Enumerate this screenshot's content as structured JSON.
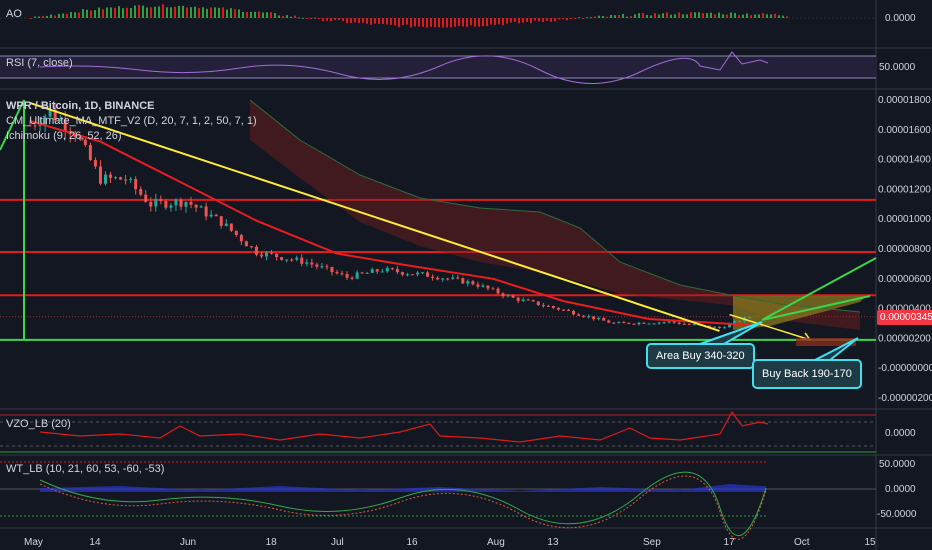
{
  "panes": {
    "ao": {
      "label": "AO",
      "value": "0.0000"
    },
    "rsi": {
      "label": "RSI (7, close)",
      "value": "50.0000"
    },
    "main": {
      "title": "WPR / Bitcoin, 1D, BINANCE",
      "ma_label": "CM_Ultimate_MA_MTF_V2 (D, 20, 7, 1, 2, 50, 7, 1)",
      "ichimoku_label": "Ichimoku (9, 26, 52, 26)",
      "price_ticks": [
        "0.00001800",
        "0.00001600",
        "0.00001400",
        "0.00001200",
        "0.00001000",
        "0.00000800",
        "0.00000600",
        "0.00000400",
        "0.00000200",
        "-0.00000000",
        "-0.00000200"
      ],
      "current_price": "0.00000345"
    },
    "vzo": {
      "label": "VZO_LB (20)",
      "value": "0.0000"
    },
    "wt": {
      "label": "WT_LB (10, 21, 60, 53, -60, -53)",
      "ticks": [
        "50.0000",
        "0.0000",
        "-50.0000"
      ]
    }
  },
  "annotations": {
    "area_buy": "Area Buy 340-320",
    "buy_back": "Buy Back 190-170"
  },
  "time_axis": [
    "May",
    "14",
    "Jun",
    "18",
    "Jul",
    "16",
    "Aug",
    "13",
    "Sep",
    "17",
    "Oct",
    "15"
  ],
  "colors": {
    "background": "#131722",
    "up_candle": "#26a69a",
    "down_candle": "#ef5350",
    "ma_line": "#e91e1e",
    "trendline": "#ffeb3b",
    "support": "#39d84a",
    "resistance": "#e31b1b",
    "callout_border": "#40e0ef",
    "cloud_bear": "#7a1f1f",
    "cloud_bull": "#8a7a1e"
  },
  "chart_data": {
    "type": "candlestick",
    "title": "WPR / Bitcoin, 1D, BINANCE",
    "x_range": [
      "2018-05-01",
      "2018-10-15"
    ],
    "ylim": [
      -2e-06,
      1.85e-05
    ],
    "resistance_levels": [
      1.13e-05,
      7.8e-06,
      4.9e-06
    ],
    "support_level": 1.9e-06,
    "current_price": 3.45e-06,
    "trendline": [
      {
        "date": "2018-05-01",
        "price": 1.78e-05
      },
      {
        "date": "2018-09-15",
        "price": 2.5e-06
      }
    ],
    "projection_target": {
      "date": "2018-10-03",
      "price": 1.9e-06
    },
    "close_path": [
      {
        "date": "2018-05-01",
        "price": 1.63e-05
      },
      {
        "date": "2018-05-05",
        "price": 1.72e-05
      },
      {
        "date": "2018-05-10",
        "price": 1.58e-05
      },
      {
        "date": "2018-05-15",
        "price": 1.27e-05
      },
      {
        "date": "2018-05-20",
        "price": 1.27e-05
      },
      {
        "date": "2018-05-25",
        "price": 1.1e-05
      },
      {
        "date": "2018-06-01",
        "price": 1.12e-05
      },
      {
        "date": "2018-06-08",
        "price": 9.8e-06
      },
      {
        "date": "2018-06-15",
        "price": 7.8e-06
      },
      {
        "date": "2018-06-25",
        "price": 7.1e-06
      },
      {
        "date": "2018-07-03",
        "price": 6.1e-06
      },
      {
        "date": "2018-07-10",
        "price": 6.6e-06
      },
      {
        "date": "2018-07-20",
        "price": 6.2e-06
      },
      {
        "date": "2018-07-28",
        "price": 5.7e-06
      },
      {
        "date": "2018-08-05",
        "price": 4.7e-06
      },
      {
        "date": "2018-08-15",
        "price": 3.9e-06
      },
      {
        "date": "2018-08-25",
        "price": 3e-06
      },
      {
        "date": "2018-09-05",
        "price": 3.1e-06
      },
      {
        "date": "2018-09-15",
        "price": 2.7e-06
      },
      {
        "date": "2018-09-21",
        "price": 3.45e-06
      }
    ],
    "ma_path": [
      {
        "date": "2018-05-01",
        "price": 1.66e-05
      },
      {
        "date": "2018-05-15",
        "price": 1.52e-05
      },
      {
        "date": "2018-06-01",
        "price": 1.23e-05
      },
      {
        "date": "2018-06-15",
        "price": 9.9e-06
      },
      {
        "date": "2018-07-01",
        "price": 7.7e-06
      },
      {
        "date": "2018-07-15",
        "price": 6.9e-06
      },
      {
        "date": "2018-08-01",
        "price": 6e-06
      },
      {
        "date": "2018-08-15",
        "price": 4.5e-06
      },
      {
        "date": "2018-09-01",
        "price": 3.3e-06
      },
      {
        "date": "2018-09-21",
        "price": 2.9e-06
      }
    ]
  }
}
